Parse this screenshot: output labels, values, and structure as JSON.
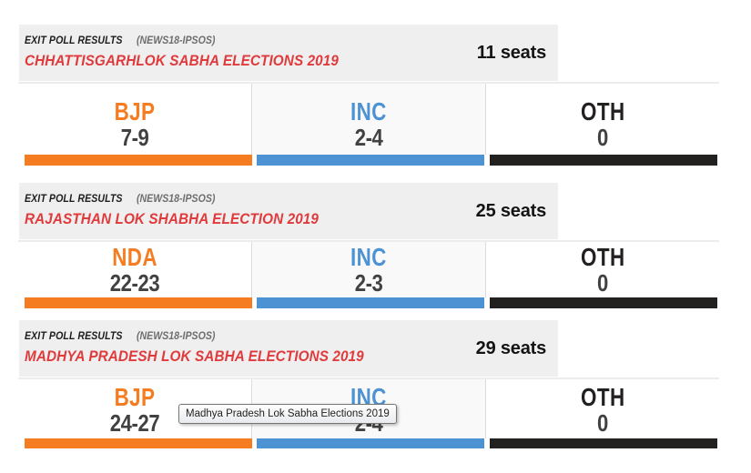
{
  "colors": {
    "header_bg": "#efefef",
    "title_red": "#e03a3c",
    "kicker_black": "#1d1d1d",
    "source_gray": "#6e6e6e",
    "value_gray": "#414141",
    "divider_gray": "#dcdcdc",
    "bjp_orange": "#f57c20",
    "inc_blue": "#4d92d2",
    "oth_black": "#232020"
  },
  "sections": [
    {
      "kicker": "EXIT POLL RESULTS",
      "source": "(NEWS18-IPSOS)",
      "title": "CHHATTISGARHLOK SABHA ELECTIONS 2019",
      "seats": "11 seats",
      "parties": [
        {
          "name": "BJP",
          "range": "7-9",
          "color": "#f57c20"
        },
        {
          "name": "INC",
          "range": "2-4",
          "color": "#4d92d2"
        },
        {
          "name": "OTH",
          "range": "0",
          "color": "#232020"
        }
      ]
    },
    {
      "kicker": "EXIT POLL RESULTS",
      "source": "(NEWS18-IPSOS)",
      "title": "RAJASTHAN LOK SHABHA ELECTION 2019",
      "seats": "25 seats",
      "parties": [
        {
          "name": "NDA",
          "range": "22-23",
          "color": "#f57c20"
        },
        {
          "name": "INC",
          "range": "2-3",
          "color": "#4d92d2"
        },
        {
          "name": "OTH",
          "range": "0",
          "color": "#232020"
        }
      ]
    },
    {
      "kicker": "EXIT POLL RESULTS",
      "source": "(NEWS18-IPSOS)",
      "title": "MADHYA PRADESH LOK SABHA ELECTIONS 2019",
      "seats": "29 seats",
      "parties": [
        {
          "name": "BJP",
          "range": "24-27",
          "color": "#f57c20"
        },
        {
          "name": "INC",
          "range": "2-4",
          "color": "#4d92d2"
        },
        {
          "name": "OTH",
          "range": "0",
          "color": "#232020"
        }
      ]
    }
  ],
  "tooltip": {
    "text": "Madhya Pradesh Lok Sabha Elections 2019"
  },
  "chart_data": [
    {
      "type": "bar",
      "title": "CHHATTISGARHLOK SABHA ELECTIONS 2019",
      "subtitle": "EXIT POLL RESULTS (NEWS18-IPSOS)",
      "total_seats": 11,
      "categories": [
        "BJP",
        "INC",
        "OTH"
      ],
      "values": [
        "7-9",
        "2-4",
        "0"
      ],
      "value_ranges": [
        [
          7,
          9
        ],
        [
          2,
          4
        ],
        [
          0,
          0
        ]
      ],
      "colors": [
        "#f57c20",
        "#4d92d2",
        "#232020"
      ]
    },
    {
      "type": "bar",
      "title": "RAJASTHAN LOK SHABHA ELECTION 2019",
      "subtitle": "EXIT POLL RESULTS (NEWS18-IPSOS)",
      "total_seats": 25,
      "categories": [
        "NDA",
        "INC",
        "OTH"
      ],
      "values": [
        "22-23",
        "2-3",
        "0"
      ],
      "value_ranges": [
        [
          22,
          23
        ],
        [
          2,
          3
        ],
        [
          0,
          0
        ]
      ],
      "colors": [
        "#f57c20",
        "#4d92d2",
        "#232020"
      ]
    },
    {
      "type": "bar",
      "title": "MADHYA PRADESH LOK SABHA ELECTIONS 2019",
      "subtitle": "EXIT POLL RESULTS (NEWS18-IPSOS)",
      "total_seats": 29,
      "categories": [
        "BJP",
        "INC",
        "OTH"
      ],
      "values": [
        "24-27",
        "2-4",
        "0"
      ],
      "value_ranges": [
        [
          24,
          27
        ],
        [
          2,
          4
        ],
        [
          0,
          0
        ]
      ],
      "colors": [
        "#f57c20",
        "#4d92d2",
        "#232020"
      ]
    }
  ]
}
